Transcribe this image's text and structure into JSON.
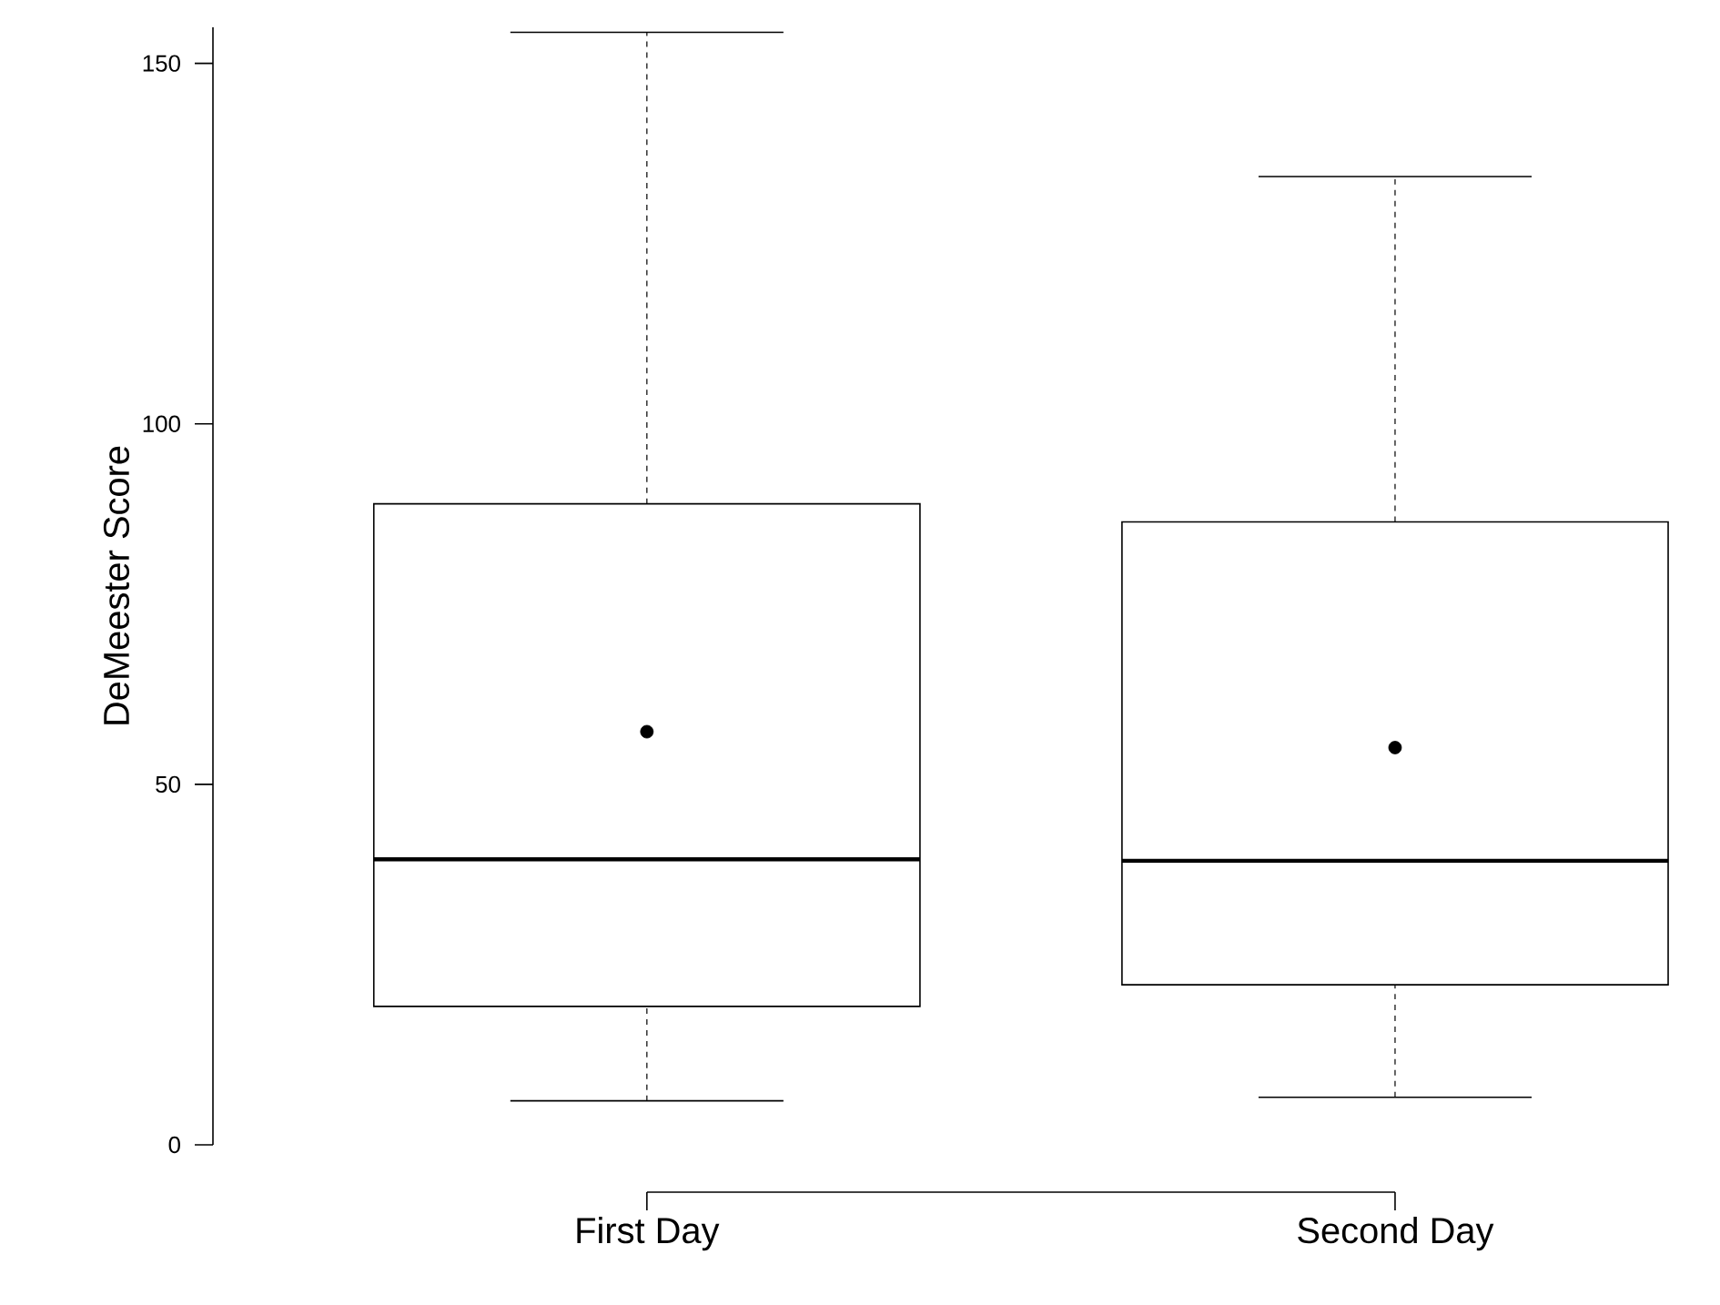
{
  "chart_data": {
    "type": "box",
    "categories": [
      "First Day",
      "Second Day"
    ],
    "ylabel": "DeMeester Score",
    "ylim": [
      0,
      155
    ],
    "yticks": [
      0,
      50,
      100,
      150
    ],
    "boxes": [
      {
        "low": 6.1,
        "q1": 19.2,
        "median": 39.6,
        "q3": 88.9,
        "high": 154.3,
        "mean": 57.3
      },
      {
        "low": 6.6,
        "q1": 22.2,
        "median": 39.4,
        "q3": 86.4,
        "high": 134.3,
        "mean": 55.1
      }
    ]
  }
}
